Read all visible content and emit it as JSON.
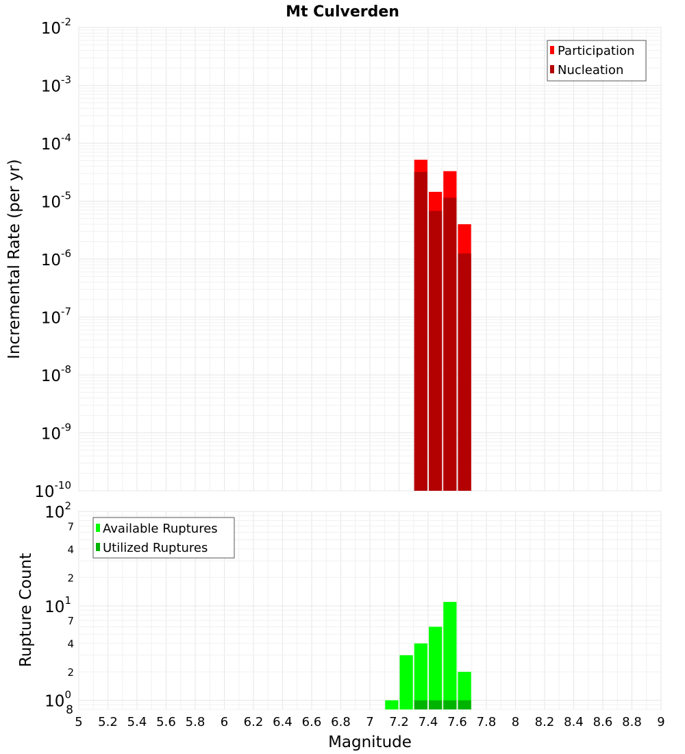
{
  "chart_data": [
    {
      "type": "bar",
      "title": "Mt Culverden",
      "ylabel": "Incremental Rate (per yr)",
      "yscale": "log",
      "ylim": [
        1e-10,
        0.01
      ],
      "xlim": [
        5,
        9
      ],
      "bin_width": 0.1,
      "y_ticks": [
        {
          "base": "10",
          "exp": "-10"
        },
        {
          "base": "10",
          "exp": "-9"
        },
        {
          "base": "10",
          "exp": "-8"
        },
        {
          "base": "10",
          "exp": "-7"
        },
        {
          "base": "10",
          "exp": "-6"
        },
        {
          "base": "10",
          "exp": "-5"
        },
        {
          "base": "10",
          "exp": "-4"
        },
        {
          "base": "10",
          "exp": "-3"
        },
        {
          "base": "10",
          "exp": "-2"
        }
      ],
      "grid": true,
      "legend_position": "top-right",
      "series": [
        {
          "name": "Participation",
          "color": "#ff0000",
          "x": [
            7.35,
            7.45,
            7.55,
            7.65
          ],
          "values": [
            5.2e-05,
            1.45e-05,
            3.3e-05,
            4e-06
          ]
        },
        {
          "name": "Nucleation",
          "color": "#b30000",
          "x": [
            7.35,
            7.45,
            7.55,
            7.65
          ],
          "values": [
            3.2e-05,
            6.8e-06,
            1.15e-05,
            1.25e-06
          ]
        }
      ]
    },
    {
      "type": "bar",
      "ylabel": "Rupture Count",
      "xlabel": "Magnitude",
      "yscale": "log",
      "ylim": [
        0.8,
        100
      ],
      "xlim": [
        5,
        9
      ],
      "bin_width": 0.1,
      "y_ticks": [
        {
          "value": 1,
          "base": "10",
          "exp": "0"
        },
        {
          "value": 2,
          "label": "2"
        },
        {
          "value": 4,
          "label": "4"
        },
        {
          "value": 7,
          "label": "7"
        },
        {
          "value": 10,
          "base": "10",
          "exp": "1"
        },
        {
          "value": 20,
          "label": "2"
        },
        {
          "value": 40,
          "label": "4"
        },
        {
          "value": 70,
          "label": "7"
        },
        {
          "value": 100,
          "base": "10",
          "exp": "2"
        }
      ],
      "y_bottom_label": "8",
      "x_ticks": [
        "5",
        "5.2",
        "5.4",
        "5.6",
        "5.8",
        "6",
        "6.2",
        "6.4",
        "6.6",
        "6.8",
        "7",
        "7.2",
        "7.4",
        "7.6",
        "7.8",
        "8",
        "8.2",
        "8.4",
        "8.6",
        "8.8",
        "9"
      ],
      "grid": true,
      "legend_position": "top-left",
      "series": [
        {
          "name": "Available Ruptures",
          "color": "#00ff00",
          "x": [
            7.15,
            7.25,
            7.35,
            7.45,
            7.55,
            7.65
          ],
          "values": [
            1,
            3,
            4,
            6,
            11,
            2
          ]
        },
        {
          "name": "Utilized Ruptures",
          "color": "#00b300",
          "x": [
            7.35,
            7.45,
            7.55,
            7.65
          ],
          "values": [
            1,
            1,
            1,
            1
          ]
        }
      ]
    }
  ]
}
